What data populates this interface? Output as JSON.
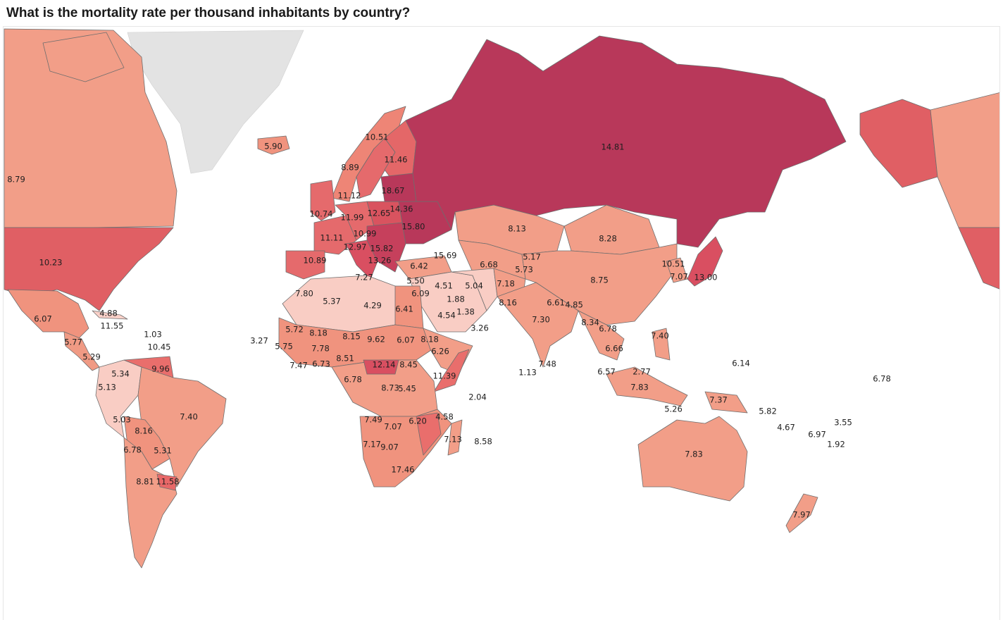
{
  "title": "What is the mortality rate per thousand inhabitants by country?",
  "colors": {
    "scale_low": "#f9d5cf",
    "scale_mid": "#f0907b",
    "scale_high": "#b8385a",
    "no_data": "#e3e3e3",
    "border": "#6e6e6e"
  },
  "labels": [
    {
      "id": "canada",
      "text": "8.79"
    },
    {
      "id": "usa",
      "text": "10.23"
    },
    {
      "id": "mexico",
      "text": "6.07"
    },
    {
      "id": "cuba",
      "text": "4.88"
    },
    {
      "id": "jamaica",
      "text": "11.55"
    },
    {
      "id": "guatemala",
      "text": "5.77"
    },
    {
      "id": "costa_rica",
      "text": "5.29"
    },
    {
      "id": "dominican",
      "text": "1.03"
    },
    {
      "id": "lesser_antilles",
      "text": "10.45"
    },
    {
      "id": "colombia",
      "text": "5.34"
    },
    {
      "id": "ecuador",
      "text": "5.13"
    },
    {
      "id": "venezuela",
      "text": "9.96"
    },
    {
      "id": "peru",
      "text": "5.03"
    },
    {
      "id": "brazil",
      "text": "7.40"
    },
    {
      "id": "bolivia",
      "text": "8.16"
    },
    {
      "id": "chile",
      "text": "6.78"
    },
    {
      "id": "paraguay",
      "text": "5.31"
    },
    {
      "id": "argentina",
      "text": "8.81"
    },
    {
      "id": "uruguay",
      "text": "11.58"
    },
    {
      "id": "iceland",
      "text": "5.90"
    },
    {
      "id": "norway",
      "text": "8.89"
    },
    {
      "id": "sweden",
      "text": "10.51"
    },
    {
      "id": "finland",
      "text": "11.46"
    },
    {
      "id": "denmark",
      "text": "11.12"
    },
    {
      "id": "estonia",
      "text": "18.67"
    },
    {
      "id": "uk",
      "text": "10.74"
    },
    {
      "id": "netherlands",
      "text": "11.99"
    },
    {
      "id": "poland",
      "text": "12.65"
    },
    {
      "id": "belarus",
      "text": "14.36"
    },
    {
      "id": "ukraine",
      "text": "15.80"
    },
    {
      "id": "germany",
      "text": "10.99"
    },
    {
      "id": "france",
      "text": "11.11"
    },
    {
      "id": "italy",
      "text": "12.97"
    },
    {
      "id": "romania",
      "text": "15.82"
    },
    {
      "id": "bulgaria",
      "text": "13.26"
    },
    {
      "id": "spain",
      "text": "10.89"
    },
    {
      "id": "georgia",
      "text": "15.69"
    },
    {
      "id": "tunisia",
      "text": "7.27"
    },
    {
      "id": "morocco",
      "text": "7.80"
    },
    {
      "id": "algeria",
      "text": "5.37"
    },
    {
      "id": "libya",
      "text": "4.29"
    },
    {
      "id": "egypt",
      "text": "6.41"
    },
    {
      "id": "turkey",
      "text": "6.42"
    },
    {
      "id": "lebanon",
      "text": "5.50"
    },
    {
      "id": "jordan",
      "text": "6.09"
    },
    {
      "id": "iraq",
      "text": "4.51"
    },
    {
      "id": "iran",
      "text": "5.04"
    },
    {
      "id": "kuwait",
      "text": "1.88"
    },
    {
      "id": "qatar",
      "text": "1.38"
    },
    {
      "id": "saudi",
      "text": "4.54"
    },
    {
      "id": "yemen",
      "text": "3.26"
    },
    {
      "id": "kazakhstan",
      "text": "8.13"
    },
    {
      "id": "turkmenistan",
      "text": "6.68"
    },
    {
      "id": "kyrgyzstan",
      "text": "5.17"
    },
    {
      "id": "tajikistan",
      "text": "5.73"
    },
    {
      "id": "afghanistan",
      "text": "7.18"
    },
    {
      "id": "pakistan",
      "text": "8.16"
    },
    {
      "id": "russia",
      "text": "14.81"
    },
    {
      "id": "mongolia",
      "text": "8.28"
    },
    {
      "id": "china",
      "text": "8.75"
    },
    {
      "id": "korea",
      "text": "10.51"
    },
    {
      "id": "south_korea",
      "text": "7.07"
    },
    {
      "id": "japan",
      "text": "13.00"
    },
    {
      "id": "nepal",
      "text": "6.61"
    },
    {
      "id": "bhutan",
      "text": "4.85"
    },
    {
      "id": "india",
      "text": "7.30"
    },
    {
      "id": "myanmar",
      "text": "8.34"
    },
    {
      "id": "laos",
      "text": "6.78"
    },
    {
      "id": "vietnam",
      "text": "6.66"
    },
    {
      "id": "sri_lanka",
      "text": "7.48"
    },
    {
      "id": "maldives",
      "text": "1.13"
    },
    {
      "id": "philippines",
      "text": "7.40"
    },
    {
      "id": "malaysia",
      "text": "6.57"
    },
    {
      "id": "brunei",
      "text": "2.77"
    },
    {
      "id": "indonesia",
      "text": "7.83"
    },
    {
      "id": "timor",
      "text": "5.26"
    },
    {
      "id": "png",
      "text": "7.37"
    },
    {
      "id": "micronesia",
      "text": "6.14"
    },
    {
      "id": "marshall",
      "text": "6.78"
    },
    {
      "id": "solomon",
      "text": "5.82"
    },
    {
      "id": "vanuatu",
      "text": "4.67"
    },
    {
      "id": "fiji",
      "text": "6.97"
    },
    {
      "id": "samoa",
      "text": "3.55"
    },
    {
      "id": "tonga",
      "text": "1.92"
    },
    {
      "id": "australia",
      "text": "7.83"
    },
    {
      "id": "new_zealand",
      "text": "7.97"
    },
    {
      "id": "cape_verde",
      "text": "3.27"
    },
    {
      "id": "mauritania",
      "text": "5.72"
    },
    {
      "id": "mali",
      "text": "8.18"
    },
    {
      "id": "senegal",
      "text": "5.75"
    },
    {
      "id": "burkina",
      "text": "7.78"
    },
    {
      "id": "niger",
      "text": "8.15"
    },
    {
      "id": "chad",
      "text": "9.62"
    },
    {
      "id": "sudan",
      "text": "6.07"
    },
    {
      "id": "eritrea",
      "text": "8.18"
    },
    {
      "id": "ethiopia",
      "text": "6.26"
    },
    {
      "id": "nigeria",
      "text": "8.51"
    },
    {
      "id": "liberia",
      "text": "7.47"
    },
    {
      "id": "ghana",
      "text": "6.73"
    },
    {
      "id": "cameroon",
      "text": "6.78"
    },
    {
      "id": "car",
      "text": "12.14"
    },
    {
      "id": "south_sudan",
      "text": "8.45"
    },
    {
      "id": "somalia",
      "text": "11.39"
    },
    {
      "id": "drc",
      "text": "8.73"
    },
    {
      "id": "tanzania",
      "text": "5.45"
    },
    {
      "id": "seychelles",
      "text": "2.04"
    },
    {
      "id": "angola",
      "text": "7.49"
    },
    {
      "id": "zambia",
      "text": "7.07"
    },
    {
      "id": "malawi",
      "text": "6.20"
    },
    {
      "id": "comoros",
      "text": "4.58"
    },
    {
      "id": "madagascar",
      "text": "7.13"
    },
    {
      "id": "mauritius",
      "text": "8.58"
    },
    {
      "id": "namibia",
      "text": "7.17"
    },
    {
      "id": "botswana",
      "text": "9.07"
    },
    {
      "id": "south_africa",
      "text": "17.46"
    }
  ]
}
